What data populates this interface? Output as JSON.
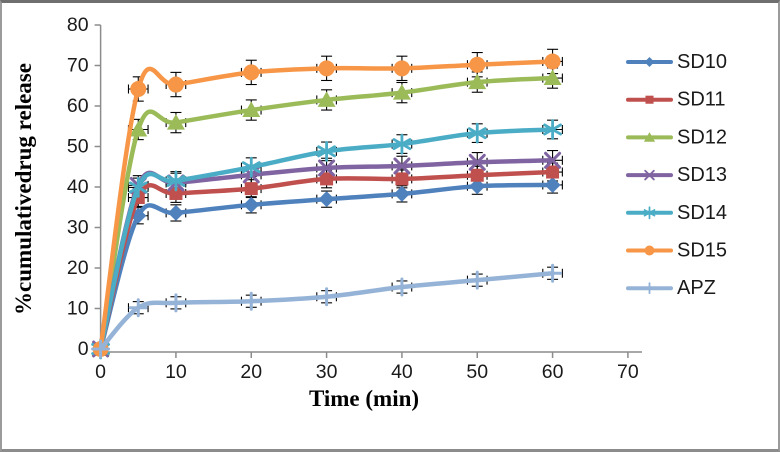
{
  "chart_data": {
    "type": "line",
    "title": "",
    "xlabel": "Time (min)",
    "ylabel": "%cumulativedrug release",
    "xlim": [
      0,
      70
    ],
    "ylim": [
      0,
      80
    ],
    "x_ticks": [
      0,
      10,
      20,
      30,
      40,
      50,
      60,
      70
    ],
    "y_ticks": [
      0,
      10,
      20,
      30,
      40,
      50,
      60,
      70,
      80
    ],
    "grid": false,
    "legend_position": "right",
    "error_bar_color": "#000000",
    "axis_color": "#8c8c8c",
    "x": [
      0,
      5,
      10,
      20,
      30,
      40,
      50,
      60
    ],
    "series": [
      {
        "name": "SD10",
        "color": "#4F81BD",
        "marker": "diamond",
        "values": [
          0,
          32.9,
          33.6,
          35.6,
          37.0,
          38.3,
          40.2,
          40.5
        ],
        "error": 2.0
      },
      {
        "name": "SD11",
        "color": "#C0504D",
        "marker": "square",
        "values": [
          0,
          37.4,
          38.4,
          39.6,
          42.0,
          42.0,
          42.9,
          43.7
        ],
        "error": 2.2
      },
      {
        "name": "SD12",
        "color": "#9BBB59",
        "marker": "triangle",
        "values": [
          0,
          54.2,
          55.9,
          59.0,
          61.5,
          63.3,
          65.9,
          66.9
        ],
        "error": 2.5
      },
      {
        "name": "SD13",
        "color": "#8064A2",
        "marker": "x",
        "values": [
          0,
          40.4,
          41.0,
          43.0,
          44.7,
          45.2,
          46.1,
          46.6
        ],
        "error": 2.4
      },
      {
        "name": "SD14",
        "color": "#4BACC6",
        "marker": "asterisk",
        "values": [
          0,
          39.9,
          41.5,
          44.9,
          48.8,
          50.6,
          53.3,
          54.2
        ],
        "error": 2.3
      },
      {
        "name": "SD15",
        "color": "#F79646",
        "marker": "circle",
        "values": [
          0,
          64.2,
          65.3,
          68.3,
          69.3,
          69.3,
          70.2,
          71.0
        ],
        "error": 3.0
      },
      {
        "name": "APZ",
        "color": "#95B3D7",
        "marker": "plus",
        "values": [
          0,
          10.2,
          11.4,
          11.8,
          12.9,
          15.3,
          17.0,
          18.7
        ],
        "error": 1.5
      }
    ]
  }
}
